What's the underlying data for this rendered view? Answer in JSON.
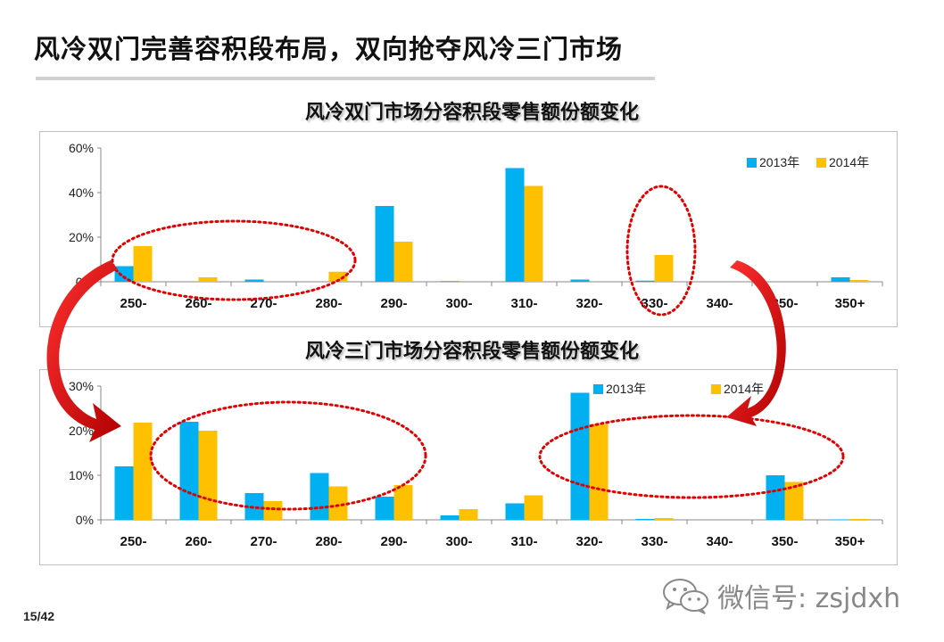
{
  "slide": {
    "title": "风冷双门完善容积段布局，双向抢夺风冷三门市场",
    "page_number": "15/42",
    "watermark": "微信号: zsjdxh",
    "watermark_icon": "wechat-icon"
  },
  "colors": {
    "series_2013": "#00b0f0",
    "series_2014": "#ffc000",
    "annotation": "#e00000"
  },
  "chart_data": [
    {
      "type": "bar",
      "title": "风冷双门市场分容积段零售额份额变化",
      "categories": [
        "250-",
        "260-",
        "270-",
        "280-",
        "290-",
        "300-",
        "310-",
        "320-",
        "330-",
        "340-",
        "350-",
        "350+"
      ],
      "series": [
        {
          "name": "2013年",
          "values": [
            0.07,
            0.0,
            0.01,
            0.0,
            0.34,
            0.003,
            0.51,
            0.01,
            0.005,
            0.0,
            0.0,
            0.02
          ]
        },
        {
          "name": "2014年",
          "values": [
            0.16,
            0.02,
            0.0,
            0.045,
            0.18,
            0.0,
            0.43,
            0.0,
            0.12,
            0.0,
            0.0,
            0.008
          ]
        }
      ],
      "ylim": [
        0,
        0.6
      ],
      "yticks": [
        "0%",
        "20%",
        "40%",
        "60%"
      ],
      "ytick_values": [
        0,
        0.2,
        0.4,
        0.6
      ],
      "grid": false,
      "legend_position": "top-right"
    },
    {
      "type": "bar",
      "title": "风冷三门市场分容积段零售额份额变化",
      "categories": [
        "250-",
        "260-",
        "270-",
        "280-",
        "290-",
        "300-",
        "310-",
        "320-",
        "330-",
        "340-",
        "350-",
        "350+"
      ],
      "series": [
        {
          "name": "2013年",
          "values": [
            0.12,
            0.22,
            0.06,
            0.105,
            0.052,
            0.01,
            0.037,
            0.285,
            0.002,
            0.0,
            0.1,
            0.001
          ]
        },
        {
          "name": "2014年",
          "values": [
            0.218,
            0.2,
            0.042,
            0.075,
            0.078,
            0.024,
            0.055,
            0.215,
            0.004,
            0.0,
            0.085,
            0.002
          ]
        }
      ],
      "ylim": [
        0,
        0.3
      ],
      "yticks": [
        "0%",
        "10%",
        "20%",
        "30%"
      ],
      "ytick_values": [
        0,
        0.1,
        0.2,
        0.3
      ],
      "grid": false,
      "legend_position": "top-right"
    }
  ]
}
